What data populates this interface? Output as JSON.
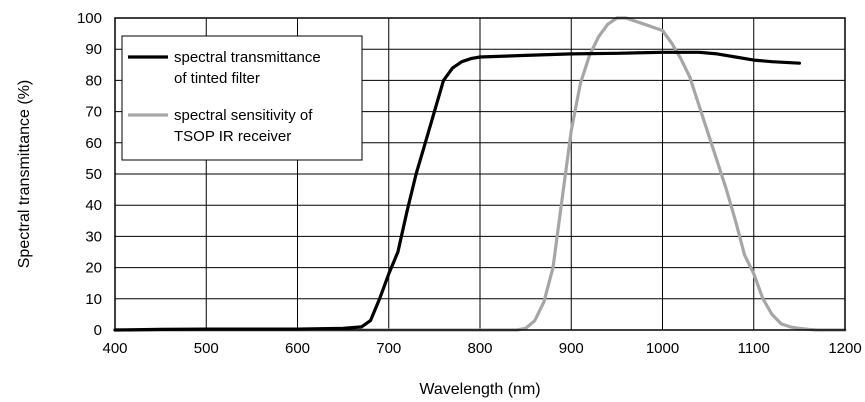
{
  "chart_data": {
    "type": "line",
    "xlabel": "Wavelength (nm)",
    "ylabel": "Spectral transmittance (%)",
    "xlim": [
      400,
      1200
    ],
    "ylim": [
      0,
      100
    ],
    "xticks": [
      400,
      500,
      600,
      700,
      800,
      900,
      1000,
      1100,
      1200
    ],
    "yticks": [
      0,
      10,
      20,
      30,
      40,
      50,
      60,
      70,
      80,
      90,
      100
    ],
    "grid": true,
    "legend_position": "top-left",
    "series": [
      {
        "name": "spectral transmittance of tinted filter",
        "legend_lines": [
          "spectral transmittance",
          "of tinted filter"
        ],
        "color": "#000000",
        "x": [
          400,
          450,
          500,
          550,
          600,
          650,
          670,
          680,
          690,
          700,
          710,
          720,
          730,
          740,
          750,
          760,
          770,
          780,
          790,
          800,
          850,
          900,
          950,
          1000,
          1040,
          1060,
          1080,
          1100,
          1120,
          1150
        ],
        "y": [
          0,
          0.2,
          0.3,
          0.3,
          0.3,
          0.5,
          1,
          3,
          10,
          18,
          25,
          38,
          50,
          60,
          70,
          80,
          84,
          86,
          87,
          87.5,
          88,
          88.5,
          88.7,
          89,
          89,
          88.5,
          87.5,
          86.5,
          86,
          85.5
        ]
      },
      {
        "name": "spectral sensitivity of TSOP IR receiver",
        "legend_lines": [
          "spectral sensitivity of",
          "TSOP IR receiver"
        ],
        "color": "#a6a6a6",
        "x": [
          400,
          500,
          600,
          700,
          800,
          840,
          850,
          860,
          870,
          880,
          890,
          900,
          910,
          920,
          930,
          940,
          950,
          960,
          970,
          980,
          990,
          1000,
          1010,
          1020,
          1030,
          1040,
          1050,
          1060,
          1070,
          1080,
          1090,
          1100,
          1110,
          1120,
          1130,
          1140,
          1150,
          1160,
          1170,
          1200
        ],
        "y": [
          0,
          0,
          0,
          0,
          0,
          0,
          0.5,
          3,
          9,
          20,
          42,
          64,
          79,
          88,
          94,
          98,
          100,
          100,
          99,
          98,
          97,
          96,
          92,
          87,
          81,
          72,
          63,
          54,
          45,
          35,
          24,
          18,
          10,
          5,
          2,
          1,
          0.5,
          0.2,
          0,
          0
        ]
      }
    ]
  }
}
